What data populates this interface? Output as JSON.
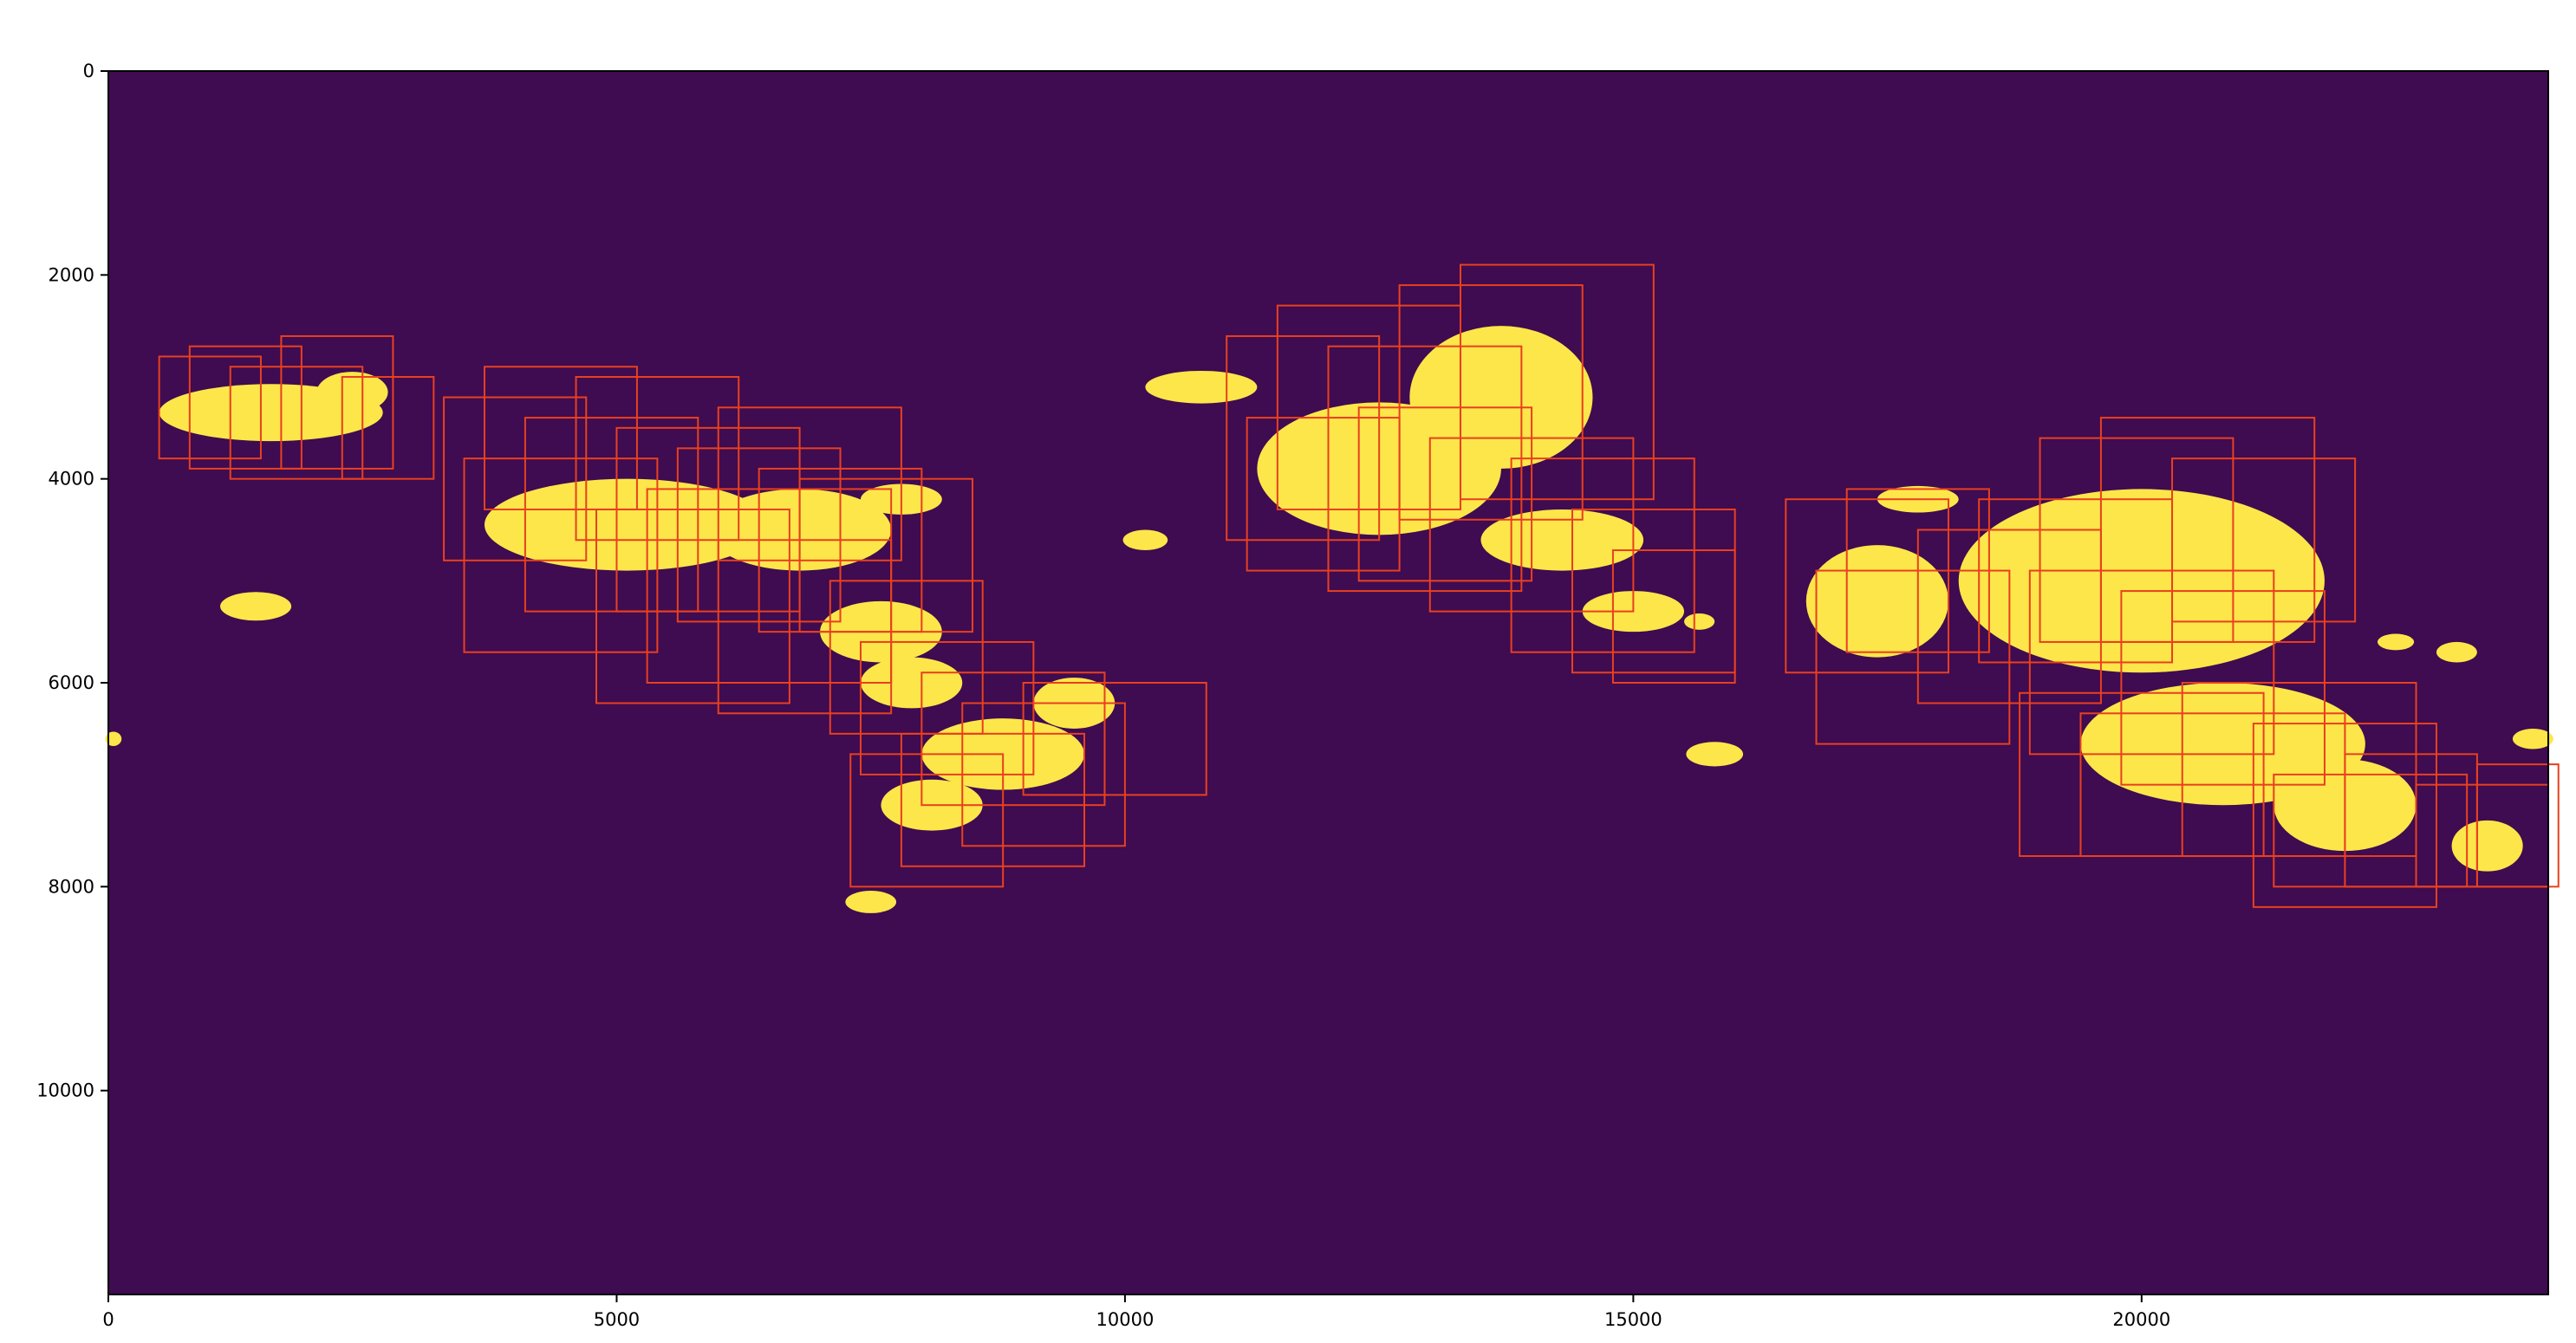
{
  "chart_data": {
    "type": "heatmap",
    "title": "",
    "xlabel": "",
    "ylabel": "",
    "xlim": [
      0,
      24000
    ],
    "ylim": [
      12000,
      0
    ],
    "x_ticks": [
      0,
      5000,
      10000,
      15000,
      20000
    ],
    "x_tick_labels": [
      "0",
      "5000",
      "10000",
      "15000",
      "20000"
    ],
    "y_ticks": [
      0,
      2000,
      4000,
      6000,
      8000,
      10000
    ],
    "y_tick_labels": [
      "0",
      "2000",
      "4000",
      "6000",
      "8000",
      "10000"
    ],
    "grid": false,
    "legend": "none",
    "colors": {
      "background": "#3f0b51",
      "foreground": "#fde64a",
      "box_stroke": "#e8401f",
      "axis": "#000000"
    },
    "mask_regions": [
      {
        "cx": 1600,
        "cy": 3350,
        "rx": 1100,
        "ry": 280
      },
      {
        "cx": 2400,
        "cy": 3150,
        "rx": 350,
        "ry": 200
      },
      {
        "cx": 5100,
        "cy": 4450,
        "rx": 1400,
        "ry": 450
      },
      {
        "cx": 6800,
        "cy": 4500,
        "rx": 900,
        "ry": 400
      },
      {
        "cx": 7800,
        "cy": 4200,
        "rx": 400,
        "ry": 150
      },
      {
        "cx": 7600,
        "cy": 5500,
        "rx": 600,
        "ry": 300
      },
      {
        "cx": 7900,
        "cy": 6000,
        "rx": 500,
        "ry": 250
      },
      {
        "cx": 8800,
        "cy": 6700,
        "rx": 800,
        "ry": 350
      },
      {
        "cx": 9500,
        "cy": 6200,
        "rx": 400,
        "ry": 250
      },
      {
        "cx": 8100,
        "cy": 7200,
        "rx": 500,
        "ry": 250
      },
      {
        "cx": 7500,
        "cy": 8150,
        "rx": 250,
        "ry": 110
      },
      {
        "cx": 1450,
        "cy": 5250,
        "rx": 350,
        "ry": 140
      },
      {
        "cx": 10750,
        "cy": 3100,
        "rx": 550,
        "ry": 160
      },
      {
        "cx": 10200,
        "cy": 4600,
        "rx": 220,
        "ry": 100
      },
      {
        "cx": 12500,
        "cy": 3900,
        "rx": 1200,
        "ry": 650
      },
      {
        "cx": 13700,
        "cy": 3200,
        "rx": 900,
        "ry": 700
      },
      {
        "cx": 14300,
        "cy": 4600,
        "rx": 800,
        "ry": 300
      },
      {
        "cx": 15000,
        "cy": 5300,
        "rx": 500,
        "ry": 200
      },
      {
        "cx": 15650,
        "cy": 5400,
        "rx": 150,
        "ry": 80
      },
      {
        "cx": 15800,
        "cy": 6700,
        "rx": 280,
        "ry": 120
      },
      {
        "cx": 17400,
        "cy": 5200,
        "rx": 700,
        "ry": 550
      },
      {
        "cx": 17800,
        "cy": 4200,
        "rx": 400,
        "ry": 130
      },
      {
        "cx": 20000,
        "cy": 5000,
        "rx": 1800,
        "ry": 900
      },
      {
        "cx": 20800,
        "cy": 6600,
        "rx": 1400,
        "ry": 600
      },
      {
        "cx": 22000,
        "cy": 7200,
        "rx": 700,
        "ry": 450
      },
      {
        "cx": 23400,
        "cy": 7600,
        "rx": 350,
        "ry": 250
      },
      {
        "cx": 23100,
        "cy": 5700,
        "rx": 200,
        "ry": 100
      },
      {
        "cx": 23850,
        "cy": 6550,
        "rx": 200,
        "ry": 100
      },
      {
        "cx": 22500,
        "cy": 5600,
        "rx": 180,
        "ry": 80
      },
      {
        "cx": 50,
        "cy": 6550,
        "rx": 80,
        "ry": 70
      }
    ],
    "boxes": [
      [
        500,
        2800,
        1000,
        1000
      ],
      [
        800,
        2700,
        1100,
        1200
      ],
      [
        1200,
        2900,
        1300,
        1100
      ],
      [
        1700,
        2600,
        1100,
        1300
      ],
      [
        2300,
        3000,
        900,
        1000
      ],
      [
        3300,
        3200,
        1400,
        1600
      ],
      [
        3700,
        2900,
        1500,
        1400
      ],
      [
        4100,
        3400,
        1700,
        1900
      ],
      [
        4600,
        3000,
        1600,
        1600
      ],
      [
        5000,
        3500,
        1800,
        1800
      ],
      [
        5600,
        3700,
        1600,
        1700
      ],
      [
        6000,
        3300,
        1800,
        1500
      ],
      [
        6400,
        3900,
        1600,
        1600
      ],
      [
        3500,
        3800,
        1900,
        1900
      ],
      [
        4800,
        4300,
        1900,
        1900
      ],
      [
        5300,
        4100,
        2400,
        1900
      ],
      [
        6000,
        4600,
        1700,
        1700
      ],
      [
        6800,
        4000,
        1700,
        1500
      ],
      [
        7100,
        5000,
        1500,
        1500
      ],
      [
        7400,
        5600,
        1700,
        1300
      ],
      [
        8000,
        5900,
        1800,
        1300
      ],
      [
        7300,
        6700,
        1500,
        1300
      ],
      [
        7800,
        6500,
        1800,
        1300
      ],
      [
        8400,
        6200,
        1600,
        1400
      ],
      [
        9000,
        6000,
        1800,
        1100
      ],
      [
        11000,
        2600,
        1500,
        2000
      ],
      [
        11500,
        2300,
        1800,
        2000
      ],
      [
        12000,
        2700,
        1900,
        2400
      ],
      [
        12700,
        2100,
        1800,
        2300
      ],
      [
        13300,
        1900,
        1900,
        2300
      ],
      [
        11200,
        3400,
        1500,
        1500
      ],
      [
        12300,
        3300,
        1700,
        1700
      ],
      [
        13000,
        3600,
        2000,
        1700
      ],
      [
        13800,
        3800,
        1800,
        1900
      ],
      [
        14400,
        4300,
        1600,
        1600
      ],
      [
        14800,
        4700,
        1200,
        1300
      ],
      [
        16500,
        4200,
        1600,
        1700
      ],
      [
        17100,
        4100,
        1400,
        1600
      ],
      [
        16800,
        4900,
        1900,
        1700
      ],
      [
        17800,
        4500,
        1800,
        1700
      ],
      [
        18400,
        4200,
        1900,
        1600
      ],
      [
        19000,
        3600,
        1900,
        2000
      ],
      [
        19600,
        3400,
        2100,
        2200
      ],
      [
        20300,
        3800,
        1800,
        1600
      ],
      [
        18900,
        4900,
        2400,
        1800
      ],
      [
        19800,
        5100,
        2000,
        1900
      ],
      [
        18800,
        6100,
        2400,
        1600
      ],
      [
        19400,
        6300,
        2600,
        1400
      ],
      [
        20400,
        6000,
        2300,
        1700
      ],
      [
        21100,
        6400,
        1800,
        1800
      ],
      [
        21300,
        6900,
        1900,
        1100
      ],
      [
        22000,
        6700,
        1300,
        1300
      ],
      [
        22700,
        7000,
        1300,
        1000
      ],
      [
        23300,
        6800,
        800,
        1200
      ]
    ]
  }
}
